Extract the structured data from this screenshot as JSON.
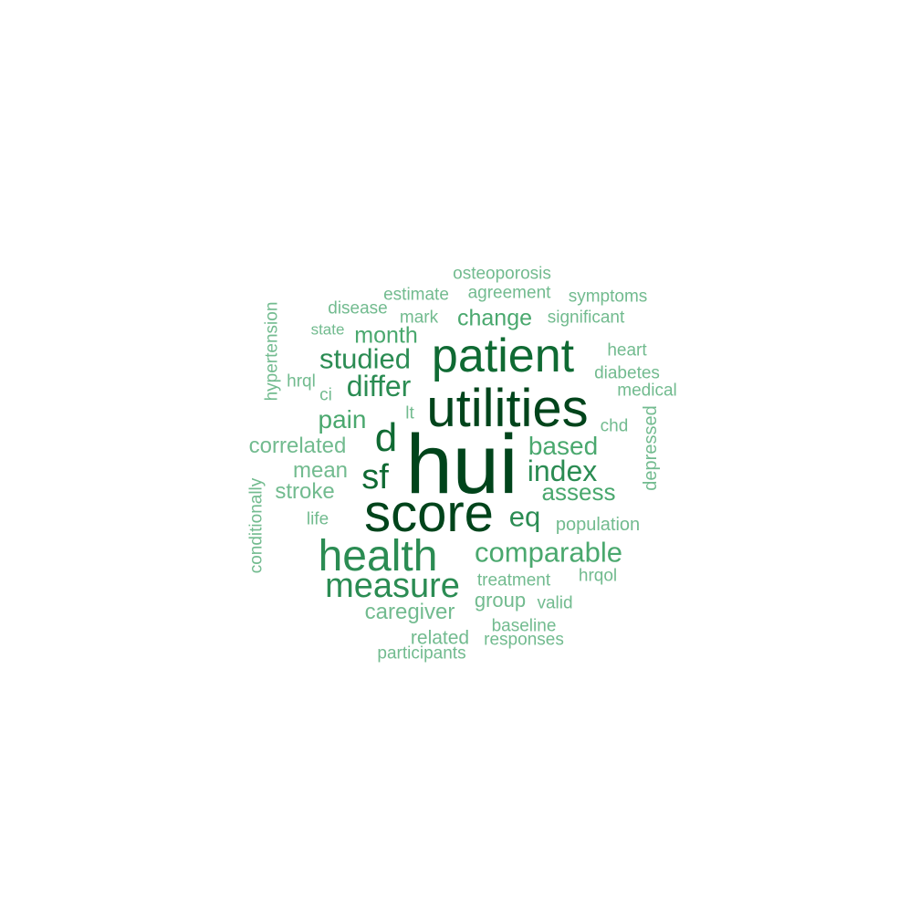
{
  "cloud": {
    "words": [
      "hui",
      "utilities",
      "score",
      "patient",
      "health",
      "d",
      "sf",
      "measure",
      "differ",
      "index",
      "comparable",
      "studied",
      "eq",
      "pain",
      "based",
      "assess",
      "month",
      "change",
      "correlated",
      "mean",
      "stroke",
      "caregiver",
      "group",
      "osteoporosis",
      "estimate",
      "agreement",
      "symptoms",
      "disease",
      "mark",
      "significant",
      "state",
      "heart",
      "hypertension",
      "hrql",
      "ci",
      "diabetes",
      "medical",
      "lt",
      "chd",
      "depressed",
      "conditionally",
      "life",
      "population",
      "treatment",
      "hrqol",
      "valid",
      "baseline",
      "related",
      "responses",
      "participants"
    ],
    "colors": {
      "darkest": "#00441b",
      "dark": "#0f6a33",
      "mid": "#2b8c53",
      "light": "#4aa86e",
      "lightest": "#72bb8f"
    }
  }
}
